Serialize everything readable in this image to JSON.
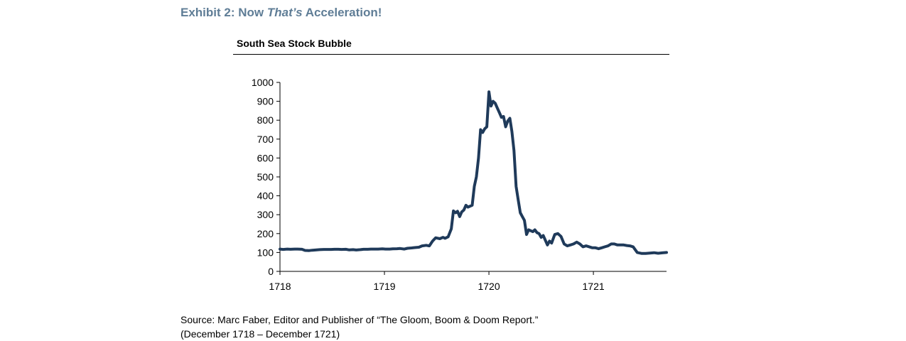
{
  "header": {
    "exhibit_prefix": "Exhibit 2: Now ",
    "exhibit_emphasis": "That’s",
    "exhibit_suffix": " Acceleration!"
  },
  "source": {
    "line1": "Source: Marc Faber, Editor and Publisher of “The Gloom, Boom & Doom Report.”",
    "line2": "(December 1718 – December 1721)"
  },
  "colors": {
    "series": "#1f3a5a",
    "title_accent": "#5f7d96"
  },
  "chart_data": {
    "type": "line",
    "title": "South Sea Stock Bubble",
    "xlabel": "",
    "ylabel": "",
    "xlim": [
      1718.0,
      1721.7
    ],
    "ylim": [
      0,
      1000
    ],
    "x_ticks": [
      1718,
      1719,
      1720,
      1721
    ],
    "x_tick_labels": [
      "1718",
      "1719",
      "1720",
      "1721"
    ],
    "y_ticks": [
      0,
      100,
      200,
      300,
      400,
      500,
      600,
      700,
      800,
      900,
      1000
    ],
    "y_tick_labels": [
      "0",
      "100",
      "200",
      "300",
      "400",
      "500",
      "600",
      "700",
      "800",
      "900",
      "1000"
    ],
    "grid": false,
    "legend": "none",
    "series": [
      {
        "x": [
          1718.0,
          1718.03,
          1718.07,
          1718.1,
          1718.14,
          1718.17,
          1718.21,
          1718.24,
          1718.28,
          1718.31,
          1718.35,
          1718.38,
          1718.42,
          1718.45,
          1718.49,
          1718.52,
          1718.56,
          1718.59,
          1718.63,
          1718.66,
          1718.7,
          1718.73,
          1718.77,
          1718.8,
          1718.84,
          1718.87,
          1718.91,
          1718.94,
          1718.98,
          1719.01,
          1719.05,
          1719.08,
          1719.12,
          1719.15,
          1719.19,
          1719.22,
          1719.26,
          1719.29,
          1719.33,
          1719.36,
          1719.4,
          1719.43,
          1719.46,
          1719.49,
          1719.53,
          1719.56,
          1719.58,
          1719.61,
          1719.64,
          1719.66,
          1719.68,
          1719.7,
          1719.72,
          1719.74,
          1719.76,
          1719.78,
          1719.8,
          1719.82,
          1719.84,
          1719.86,
          1719.88,
          1719.9,
          1719.92,
          1719.94,
          1719.96,
          1719.98,
          1720.0,
          1720.02,
          1720.04,
          1720.06,
          1720.08,
          1720.1,
          1720.12,
          1720.14,
          1720.16,
          1720.18,
          1720.2,
          1720.22,
          1720.24,
          1720.26,
          1720.28,
          1720.3,
          1720.32,
          1720.34,
          1720.36,
          1720.38,
          1720.4,
          1720.42,
          1720.44,
          1720.46,
          1720.48,
          1720.5,
          1720.52,
          1720.54,
          1720.56,
          1720.58,
          1720.6,
          1720.63,
          1720.66,
          1720.69,
          1720.72,
          1720.75,
          1720.78,
          1720.81,
          1720.84,
          1720.87,
          1720.9,
          1720.93,
          1720.96,
          1720.99,
          1721.02,
          1721.05,
          1721.08,
          1721.11,
          1721.14,
          1721.17,
          1721.2,
          1721.23,
          1721.26,
          1721.29,
          1721.32,
          1721.35,
          1721.38,
          1721.42,
          1721.46,
          1721.5,
          1721.54,
          1721.58,
          1721.62,
          1721.66,
          1721.7
        ],
        "values": [
          118,
          116,
          118,
          117,
          118,
          118,
          117,
          111,
          110,
          112,
          114,
          115,
          116,
          116,
          116,
          117,
          117,
          116,
          117,
          114,
          115,
          113,
          115,
          117,
          117,
          118,
          118,
          118,
          119,
          118,
          118,
          119,
          120,
          121,
          118,
          122,
          124,
          126,
          128,
          135,
          138,
          135,
          160,
          178,
          173,
          180,
          175,
          183,
          225,
          320,
          310,
          318,
          290,
          315,
          325,
          350,
          340,
          345,
          350,
          450,
          500,
          600,
          750,
          735,
          755,
          765,
          950,
          875,
          900,
          890,
          865,
          840,
          815,
          820,
          765,
          795,
          810,
          740,
          640,
          450,
          380,
          310,
          290,
          270,
          195,
          220,
          215,
          210,
          220,
          205,
          200,
          180,
          190,
          165,
          140,
          160,
          150,
          195,
          200,
          185,
          145,
          135,
          140,
          145,
          155,
          145,
          130,
          135,
          130,
          125,
          125,
          120,
          125,
          130,
          135,
          145,
          145,
          140,
          140,
          140,
          137,
          135,
          130,
          100,
          95,
          95,
          97,
          99,
          96,
          98,
          100
        ]
      }
    ]
  }
}
